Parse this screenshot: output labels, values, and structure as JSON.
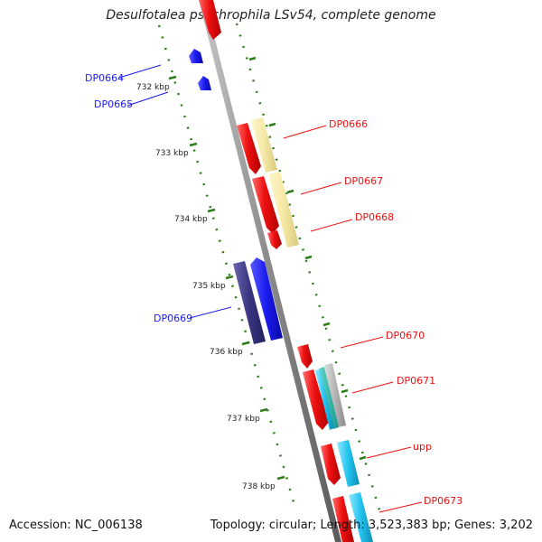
{
  "title": "Desulfotalea psychrophila LSv54, complete genome",
  "footer": {
    "accession": "Accession: NC_006138",
    "summary": "Topology: circular; Length: 3,523,383 bp; Genes: 3,202"
  },
  "colors": {
    "forward_cds": "#ee1111",
    "reverse_cds": "#1a1aee",
    "dark_blue": "#3a3580",
    "pale_yellow": "#f5e9a6",
    "cyan": "#22c3ee",
    "tick_green": "#2e7d1a",
    "backbone": "#8a8a8a"
  },
  "kbp_ticks": [
    "732 kbp",
    "733 kbp",
    "734 kbp",
    "735 kbp",
    "736 kbp",
    "737 kbp",
    "738 kbp"
  ],
  "left_labels": [
    "DP0664",
    "DP0665",
    "DP0669"
  ],
  "right_labels": [
    "DP0666",
    "DP0667",
    "DP0668",
    "DP0670",
    "DP0671",
    "upp",
    "DP0673"
  ]
}
